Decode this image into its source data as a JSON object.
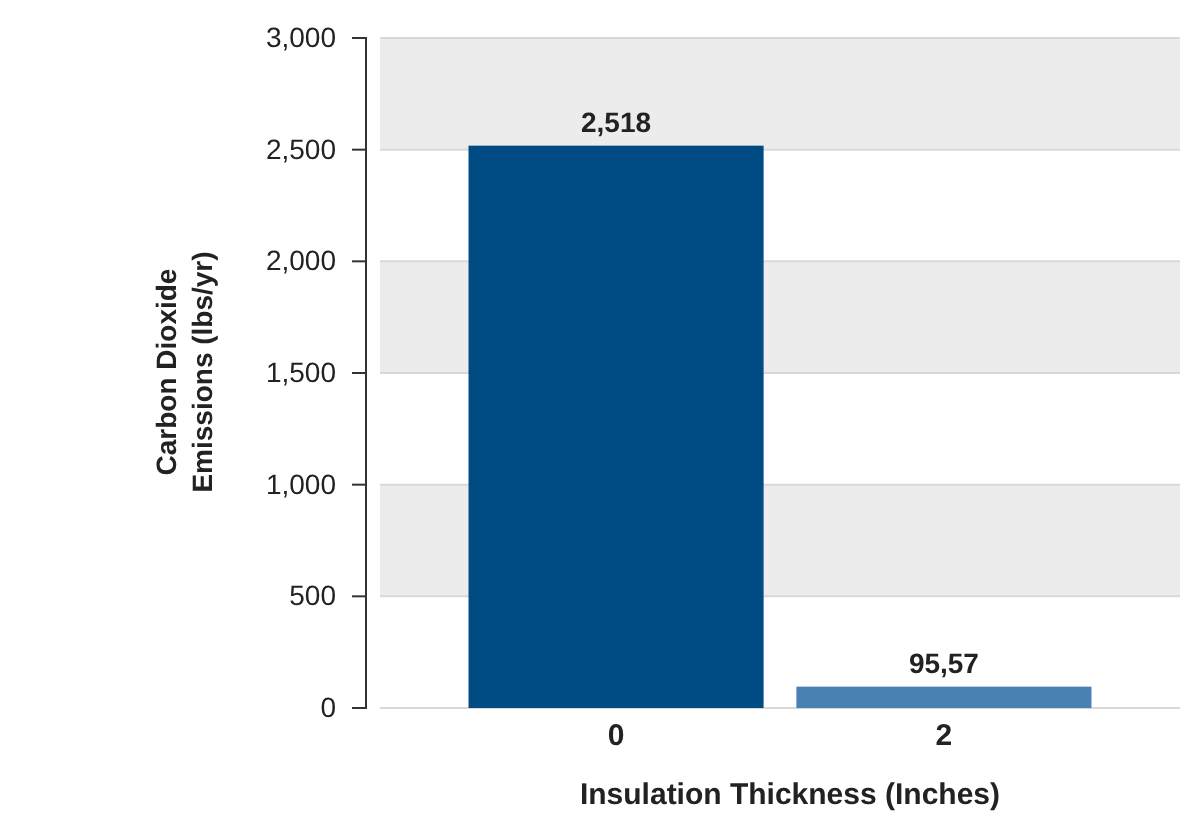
{
  "chart_data": {
    "type": "bar",
    "categories": [
      "0",
      "2"
    ],
    "values": [
      2518,
      95.57
    ],
    "value_labels": [
      "2,518",
      "95,57"
    ],
    "colors": [
      "#004b84",
      "#4a80b4"
    ],
    "xlabel": "Insulation Thickness (Inches)",
    "ylabel": "Carbon Dioxide Emissions (lbs/yr)",
    "ylim": [
      0,
      3000
    ],
    "yticks": [
      {
        "value": 0,
        "label": "0"
      },
      {
        "value": 500,
        "label": "500"
      },
      {
        "value": 1000,
        "label": "1,000"
      },
      {
        "value": 1500,
        "label": "1,500"
      },
      {
        "value": 2000,
        "label": "2,000"
      },
      {
        "value": 2500,
        "label": "2,500"
      },
      {
        "value": 3000,
        "label": "3,000"
      }
    ],
    "grid": "y"
  }
}
